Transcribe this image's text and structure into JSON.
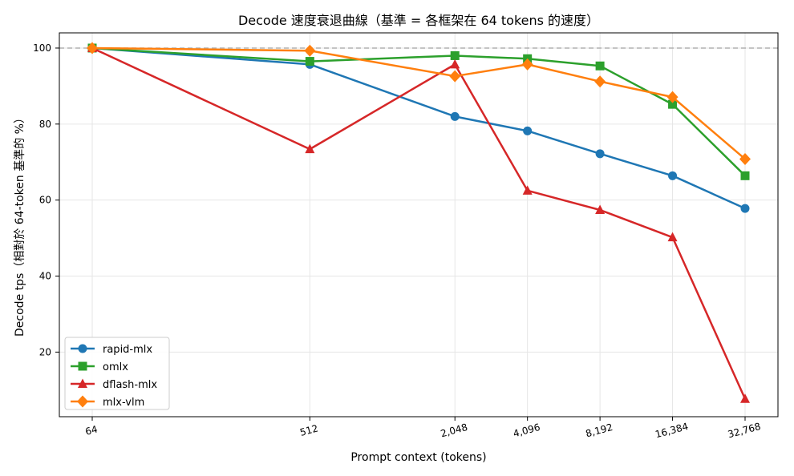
{
  "chart_data": {
    "type": "line",
    "title": "Decode 速度衰退曲線（基準 = 各框架在 64 tokens 的速度）",
    "xlabel": "Prompt context (tokens)",
    "ylabel": "Decode tps（相對於 64-token 基準的 %）",
    "x_scale": "log2",
    "x": [
      64,
      512,
      2048,
      4096,
      8192,
      16384,
      32768
    ],
    "x_tick_labels": [
      "64",
      "512",
      "2,048",
      "4,096",
      "8,192",
      "16,384",
      "32,768"
    ],
    "yticks": [
      20,
      40,
      60,
      80,
      100
    ],
    "ylim": [
      3,
      104
    ],
    "grid": true,
    "legend_position": "lower-left",
    "reference_line": {
      "y": 100,
      "style": "dashed",
      "color": "#b0b0b0"
    },
    "series": [
      {
        "name": "rapid-mlx",
        "color": "#1f77b4",
        "marker": "circle",
        "values": [
          100,
          95.7,
          82.0,
          78.2,
          72.2,
          66.4,
          57.8
        ]
      },
      {
        "name": "omlx",
        "color": "#2ca02c",
        "marker": "square",
        "values": [
          100,
          96.5,
          98.0,
          97.2,
          95.3,
          85.2,
          66.4
        ]
      },
      {
        "name": "dflash-mlx",
        "color": "#d62728",
        "marker": "triangle",
        "values": [
          100,
          73.4,
          95.7,
          62.5,
          57.4,
          50.2,
          7.7
        ]
      },
      {
        "name": "mlx-vlm",
        "color": "#ff7f0e",
        "marker": "diamond",
        "values": [
          100,
          99.3,
          92.6,
          95.7,
          91.2,
          87.1,
          70.8
        ]
      }
    ]
  }
}
